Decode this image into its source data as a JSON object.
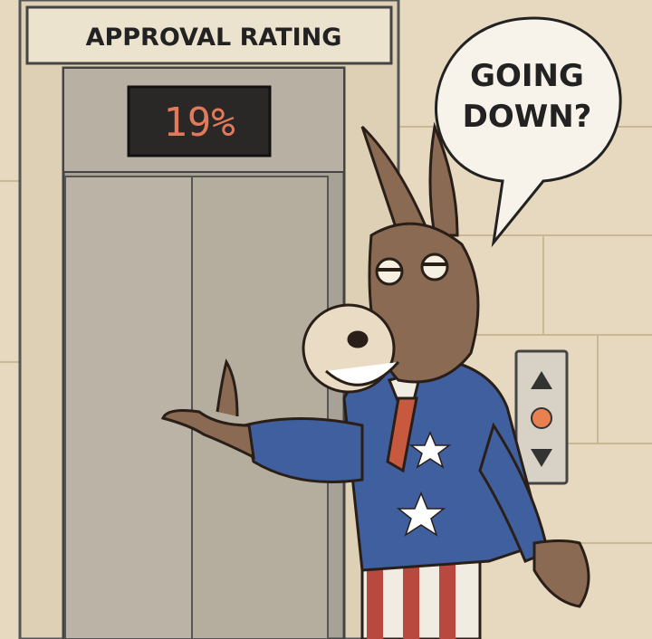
{
  "sign": {
    "label": "APPROVAL RATING"
  },
  "display": {
    "value": "19%",
    "percent": 19,
    "color": "#e07a5c"
  },
  "speech_bubble": {
    "line1": "GOING",
    "line2": "DOWN?"
  },
  "call_panel": {
    "up_icon": "triangle-up-icon",
    "indicator_icon": "circle-icon",
    "down_icon": "triangle-down-icon",
    "indicator_color": "#e8804f"
  },
  "colors": {
    "wall": "#e8dcc4",
    "door": "#b9b1a3",
    "jacket": "#3f5f9e",
    "donkey": "#8a6a52"
  }
}
